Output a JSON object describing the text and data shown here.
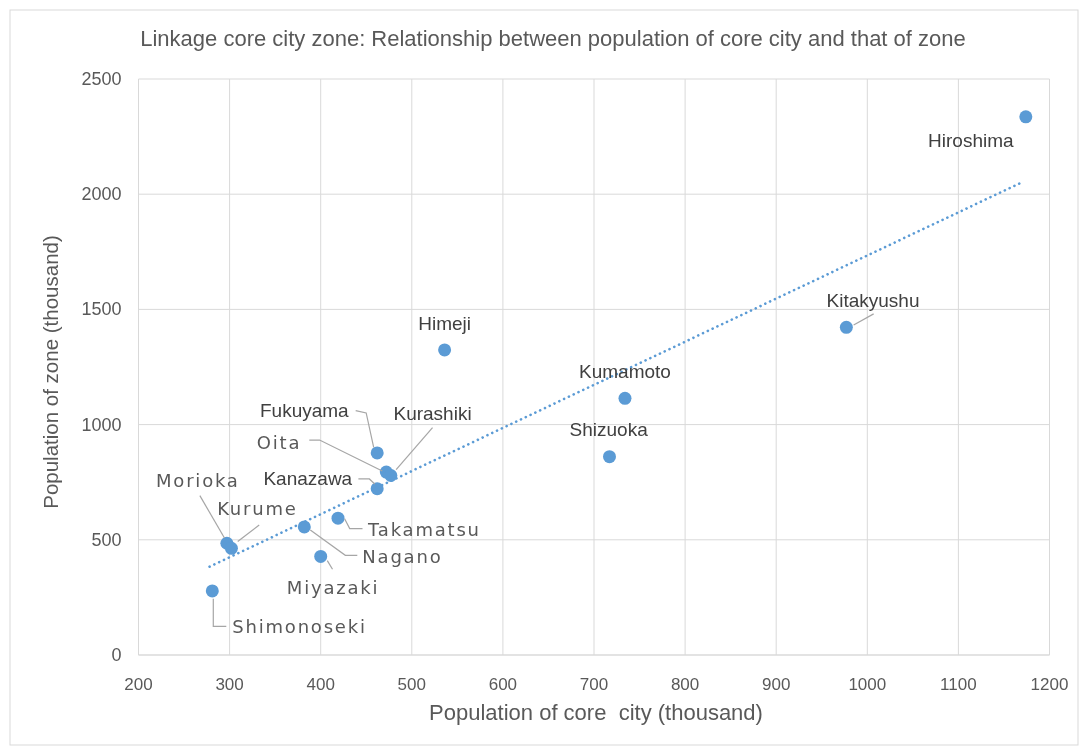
{
  "chart_data": {
    "type": "scatter",
    "title": "Linkage core city zone: Relationship between population of core city and that of zone",
    "xlabel": "Population of core  city (thousand)",
    "ylabel": "Population of zone (thousand)",
    "xlim": [
      200,
      1200
    ],
    "ylim": [
      0,
      2500
    ],
    "xticks": [
      200,
      300,
      400,
      500,
      600,
      700,
      800,
      900,
      1000,
      1100,
      1200
    ],
    "yticks": [
      0,
      500,
      1000,
      1500,
      2000,
      2500
    ],
    "grid": true,
    "series": [
      {
        "color": "#5b9bd5",
        "marker": "circle",
        "x": [
          281,
          297,
          302,
          382,
          400,
          419,
          462,
          462,
          472,
          477,
          536,
          717,
          734,
          977,
          1174
        ],
        "values": [
          278,
          485,
          463,
          556,
          428,
          594,
          722,
          877,
          794,
          779,
          1324,
          861,
          1114,
          1422,
          2336
        ]
      },
      {
        "type": "line",
        "color": "#5b9bd5",
        "line_style": "dotted",
        "marker": "none",
        "x": [
          278,
          1171
        ],
        "values": [
          383,
          2054
        ]
      }
    ],
    "annotations": [
      {
        "text": "Shimonoseki",
        "x": 281,
        "y": 278
      },
      {
        "text": "Morioka",
        "x": 297,
        "y": 485
      },
      {
        "text": "Kurume",
        "x": 302,
        "y": 463
      },
      {
        "text": "Nagano",
        "x": 382,
        "y": 556
      },
      {
        "text": "Miyazaki",
        "x": 400,
        "y": 428
      },
      {
        "text": "Takamatsu",
        "x": 419,
        "y": 594
      },
      {
        "text": "Kanazawa",
        "x": 462,
        "y": 722
      },
      {
        "text": "Fukuyama",
        "x": 462,
        "y": 877
      },
      {
        "text": "Oita",
        "x": 472,
        "y": 794
      },
      {
        "text": "Kurashiki",
        "x": 477,
        "y": 779
      },
      {
        "text": "Himeji",
        "x": 536,
        "y": 1324
      },
      {
        "text": "Shizuoka",
        "x": 717,
        "y": 861
      },
      {
        "text": "Kumamoto",
        "x": 734,
        "y": 1114
      },
      {
        "text": "Kitakyushu",
        "x": 977,
        "y": 1422
      },
      {
        "text": "Hiroshima",
        "x": 1174,
        "y": 2336
      }
    ]
  }
}
